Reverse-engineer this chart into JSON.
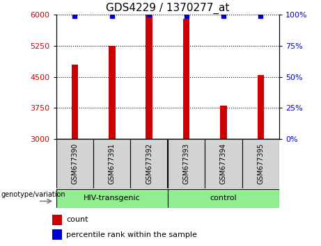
{
  "title": "GDS4229 / 1370277_at",
  "samples": [
    "GSM677390",
    "GSM677391",
    "GSM677392",
    "GSM677393",
    "GSM677394",
    "GSM677395"
  ],
  "counts": [
    4800,
    5250,
    6000,
    5900,
    3800,
    4550
  ],
  "percentiles": [
    99,
    99,
    100,
    99,
    99,
    99
  ],
  "ylim_left": [
    3000,
    6000
  ],
  "ylim_right": [
    0,
    100
  ],
  "yticks_left": [
    3000,
    3750,
    4500,
    5250,
    6000
  ],
  "yticks_right": [
    0,
    25,
    50,
    75,
    100
  ],
  "bar_color": "#cc0000",
  "dot_color": "#0000cc",
  "group1_label": "HIV-transgenic",
  "group2_label": "control",
  "group_color": "#90ee90",
  "group_label_text": "genotype/variation",
  "legend_count_label": "count",
  "legend_percentile_label": "percentile rank within the sample",
  "sample_box_color": "#d3d3d3",
  "title_fontsize": 11,
  "tick_fontsize": 8,
  "sample_fontsize": 7,
  "group_fontsize": 8,
  "legend_fontsize": 8,
  "bar_width": 0.18
}
